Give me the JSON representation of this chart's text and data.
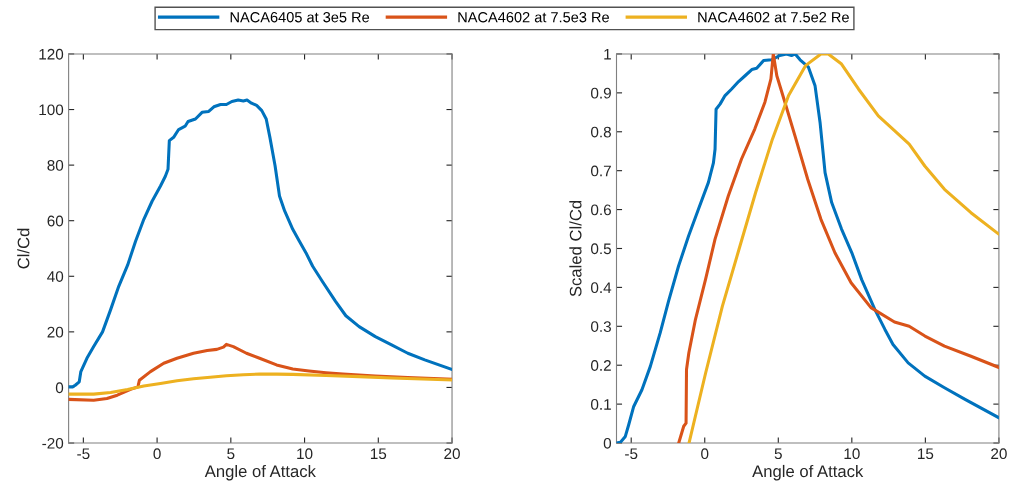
{
  "chart_data": [
    {
      "type": "line",
      "xlabel": "Angle of Attack",
      "ylabel": "Cl/Cd",
      "xlim": [
        -6,
        20
      ],
      "ylim": [
        -20,
        120
      ],
      "xticks": [
        -5,
        0,
        5,
        10,
        15,
        20
      ],
      "yticks": [
        -20,
        0,
        20,
        40,
        60,
        80,
        100,
        120
      ],
      "grid": false,
      "legend": "top",
      "series": [
        {
          "name": "NACA6405 at 3e5 Re",
          "color": "#0072bd",
          "x": [
            -6,
            -5.73,
            -5.55,
            -5.28,
            -5.17,
            -4.76,
            -4.3,
            -3.7,
            -3.15,
            -2.6,
            -2.0,
            -1.46,
            -0.9,
            -0.34,
            0.23,
            0.56,
            0.74,
            0.83,
            1.12,
            1.46,
            1.9,
            2.1,
            2.6,
            3.05,
            3.5,
            3.85,
            4.3,
            4.7,
            5.07,
            5.5,
            5.85,
            6.1,
            6.4,
            6.75,
            7.1,
            7.4,
            7.65,
            8.0,
            8.3,
            8.65,
            9.2,
            9.65,
            10.1,
            10.55,
            11.2,
            12.1,
            12.8,
            13.7,
            14.8,
            15.9,
            17.0,
            18.15,
            19.97
          ],
          "values": [
            0.2,
            0.2,
            0.8,
            2,
            5.7,
            10.5,
            14.7,
            20,
            28,
            36.4,
            44,
            52.6,
            60.5,
            67,
            72.5,
            76,
            78.5,
            88.8,
            90,
            92.8,
            94,
            95.7,
            96.6,
            99,
            99.3,
            101,
            101.8,
            101.8,
            102.9,
            103.4,
            103.1,
            103.4,
            102.3,
            101.5,
            99.6,
            96.6,
            90,
            79.8,
            68.9,
            63.5,
            56.9,
            52.6,
            48.4,
            43.6,
            38.2,
            31,
            25.8,
            21.9,
            18.3,
            15.3,
            12.3,
            9.9,
            6.5
          ]
        },
        {
          "name": "NACA4602 at 7.5e3 Re",
          "color": "#d95319",
          "x": [
            -6,
            -4.3,
            -3.4,
            -2.7,
            -1.8,
            -1.3,
            -1.2,
            -0.45,
            0.45,
            1.35,
            2.47,
            3.4,
            4.05,
            4.5,
            4.7,
            5.17,
            6.06,
            6.95,
            8.1,
            9.2,
            10.3,
            11.45,
            12.6,
            14.8,
            17.0,
            19.97
          ],
          "values": [
            -4.3,
            -4.6,
            -4,
            -2.8,
            -0.7,
            0.2,
            2.6,
            5.7,
            8.7,
            10.5,
            12.3,
            13.3,
            13.7,
            14.5,
            15.5,
            14.7,
            12.3,
            10.5,
            8.1,
            6.6,
            5.9,
            5.3,
            4.8,
            4.1,
            3.6,
            3.0
          ]
        },
        {
          "name": "NACA4602 at 7.5e2 Re",
          "color": "#edb120",
          "x": [
            -6,
            -4.3,
            -3.15,
            -2.0,
            -0.9,
            0.23,
            1.35,
            2.47,
            3.6,
            4.7,
            5.85,
            6.95,
            8.1,
            9.2,
            11.45,
            13.7,
            15.9,
            19.97
          ],
          "values": [
            -2.4,
            -2.4,
            -1.8,
            -0.7,
            0.5,
            1.4,
            2.4,
            3.1,
            3.7,
            4.2,
            4.6,
            4.8,
            4.8,
            4.7,
            4.3,
            3.9,
            3.4,
            2.7
          ]
        }
      ]
    },
    {
      "type": "line",
      "xlabel": "Angle of Attack",
      "ylabel": "Scaled Cl/Cd",
      "xlim": [
        -6,
        20
      ],
      "ylim": [
        0,
        1
      ],
      "xticks": [
        -5,
        0,
        5,
        10,
        15,
        20
      ],
      "yticks": [
        0,
        0.1,
        0.2,
        0.3,
        0.4,
        0.5,
        0.6,
        0.7,
        0.8,
        0.9,
        1
      ],
      "grid": false,
      "series": [
        {
          "color": "#0072bd",
          "x": [
            -6,
            -5.73,
            -5.4,
            -5.17,
            -4.83,
            -4.27,
            -3.7,
            -3.03,
            -2.46,
            -1.78,
            -1.1,
            -0.43,
            0.25,
            0.59,
            0.7,
            0.77,
            1.04,
            1.38,
            1.83,
            2.3,
            2.74,
            3.2,
            3.53,
            4.0,
            4.55,
            5.1,
            5.56,
            5.9,
            6.15,
            6.48,
            7.05,
            7.5,
            7.84,
            8.18,
            8.63,
            9.3,
            10.0,
            10.67,
            11.57,
            12.25,
            12.8,
            13.83,
            14.96,
            16.3,
            17.7,
            19.95
          ],
          "values": [
            0,
            0.002,
            0.017,
            0.047,
            0.094,
            0.137,
            0.197,
            0.283,
            0.365,
            0.455,
            0.532,
            0.601,
            0.67,
            0.72,
            0.755,
            0.858,
            0.871,
            0.893,
            0.91,
            0.929,
            0.944,
            0.96,
            0.963,
            0.983,
            0.985,
            0.996,
            1.0,
            0.996,
            1.0,
            0.985,
            0.966,
            0.918,
            0.824,
            0.695,
            0.618,
            0.55,
            0.489,
            0.42,
            0.343,
            0.292,
            0.253,
            0.206,
            0.172,
            0.142,
            0.112,
            0.066
          ]
        },
        {
          "color": "#d95319",
          "x": [
            -1.77,
            -1.43,
            -1.27,
            -1.24,
            -1.08,
            -0.63,
            0.05,
            0.7,
            1.6,
            2.5,
            3.4,
            4.09,
            4.5,
            4.66,
            4.9,
            5.45,
            6.13,
            7.0,
            7.9,
            8.85,
            9.95,
            11.3,
            12.9,
            13.9,
            14.97,
            16.3,
            18.1,
            19.95
          ],
          "values": [
            0,
            0.043,
            0.051,
            0.189,
            0.232,
            0.318,
            0.42,
            0.524,
            0.635,
            0.73,
            0.807,
            0.876,
            0.936,
            1.0,
            0.944,
            0.876,
            0.79,
            0.678,
            0.575,
            0.489,
            0.412,
            0.348,
            0.311,
            0.3,
            0.275,
            0.249,
            0.223,
            0.195
          ]
        },
        {
          "color": "#edb120",
          "x": [
            -1.07,
            0.06,
            1.2,
            2.33,
            3.46,
            4.6,
            5.7,
            6.85,
            7.9,
            8.4,
            9.3,
            10.45,
            11.8,
            12.9,
            13.9,
            14.96,
            16.3,
            18.1,
            19.95
          ],
          "values": [
            0,
            0.18,
            0.352,
            0.498,
            0.644,
            0.781,
            0.893,
            0.97,
            1.0,
            1.0,
            0.974,
            0.91,
            0.841,
            0.803,
            0.768,
            0.712,
            0.652,
            0.592,
            0.538
          ]
        }
      ]
    }
  ]
}
